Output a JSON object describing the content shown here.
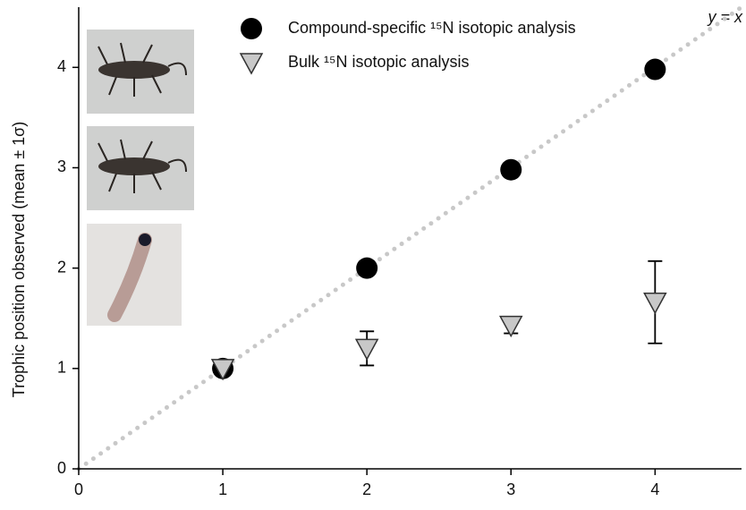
{
  "chart_data": {
    "type": "scatter",
    "ylabel": "Trophic position observed (mean ± 1σ)",
    "annotation": "y = x",
    "x": [
      1,
      2,
      3,
      4
    ],
    "series": [
      {
        "name": "Compound-specific ¹⁵N isotopic analysis",
        "color": "#000000",
        "marker": "circle",
        "values": [
          1.0,
          2.0,
          2.98,
          3.98
        ]
      },
      {
        "name": "Bulk ¹⁵N isotopic analysis",
        "color": "#c8c8c8",
        "marker": "triangle-down",
        "values": [
          1.0,
          1.2,
          1.43,
          1.66
        ],
        "errors": [
          0.03,
          0.17,
          0.08,
          0.41
        ]
      }
    ],
    "xlim": [
      0,
      4.6
    ],
    "ylim": [
      0,
      4.6
    ],
    "xticks": [
      0,
      1,
      2,
      3,
      4
    ],
    "yticks": [
      0,
      1,
      2,
      3,
      4
    ]
  }
}
